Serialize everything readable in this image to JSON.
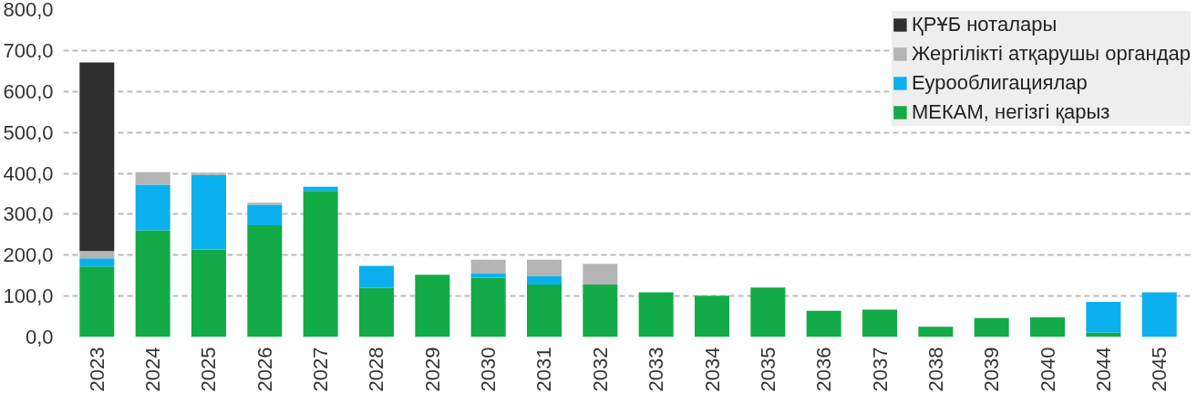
{
  "chart_data": {
    "type": "bar",
    "stacked": true,
    "categories": [
      "2023",
      "2024",
      "2025",
      "2026",
      "2027",
      "2028",
      "2029",
      "2030",
      "2031",
      "2032",
      "2033",
      "2034",
      "2035",
      "2036",
      "2037",
      "2038",
      "2039",
      "2040",
      "2044",
      "2045"
    ],
    "series": [
      {
        "name": "МЕКАМ, негізгі қарыз",
        "color": "#12ab48",
        "values": [
          172,
          261,
          214,
          273,
          357,
          120,
          152,
          145,
          128,
          128,
          109,
          101,
          121,
          64,
          67,
          25,
          46,
          48,
          11,
          null
        ]
      },
      {
        "name": "Еурооблигациялар",
        "color": "#0ab0ee",
        "values": [
          20,
          111,
          182,
          50,
          10,
          54,
          null,
          10,
          20,
          null,
          null,
          null,
          null,
          null,
          null,
          null,
          null,
          null,
          75,
          109
        ]
      },
      {
        "name": "Жергілікті атқарушы органдар",
        "color": "#b4b4b4",
        "values": [
          18,
          31,
          5,
          5,
          null,
          null,
          null,
          34,
          41,
          51,
          null,
          null,
          null,
          null,
          null,
          null,
          null,
          null,
          null,
          null
        ]
      },
      {
        "name": "ҚРҰБ ноталары",
        "color": "#2e2e2e",
        "values": [
          461,
          null,
          null,
          null,
          null,
          null,
          null,
          null,
          null,
          null,
          null,
          null,
          null,
          null,
          null,
          null,
          null,
          null,
          null,
          null
        ]
      }
    ],
    "ylim": [
      0,
      800
    ],
    "yticks": [
      {
        "value": 0,
        "label": "0,0"
      },
      {
        "value": 100,
        "label": "100,0"
      },
      {
        "value": 200,
        "label": "200,0"
      },
      {
        "value": 300,
        "label": "300,0"
      },
      {
        "value": 400,
        "label": "400,0"
      },
      {
        "value": 500,
        "label": "500,0"
      },
      {
        "value": 600,
        "label": "600,0"
      },
      {
        "value": 700,
        "label": "700,0"
      },
      {
        "value": 800,
        "label": "800,0"
      }
    ],
    "grid": "y",
    "legend": "top right"
  }
}
